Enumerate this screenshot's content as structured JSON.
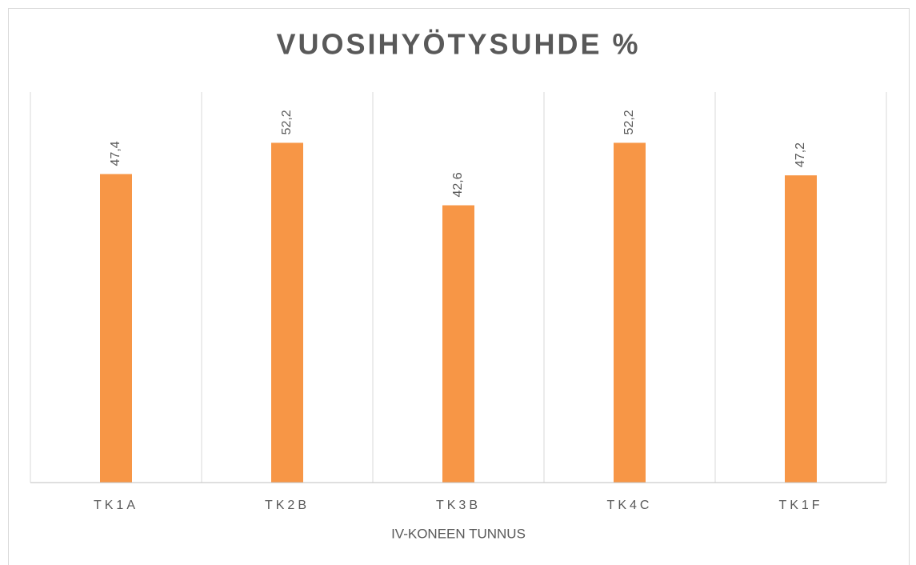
{
  "chart_data": {
    "type": "bar",
    "title": "VUOSIHYÖTYSUHDE %",
    "x_label": "IV-KONEEN TUNNUS",
    "categories": [
      "TK1A",
      "TK2B",
      "TK3B",
      "TK4C",
      "TK1F"
    ],
    "values": [
      47.4,
      52.2,
      42.6,
      52.2,
      47.2
    ],
    "value_labels": [
      "47,4",
      "52,2",
      "42,6",
      "52,2",
      "47,2"
    ],
    "color": "#f79646",
    "ylim": [
      0,
      60
    ]
  }
}
